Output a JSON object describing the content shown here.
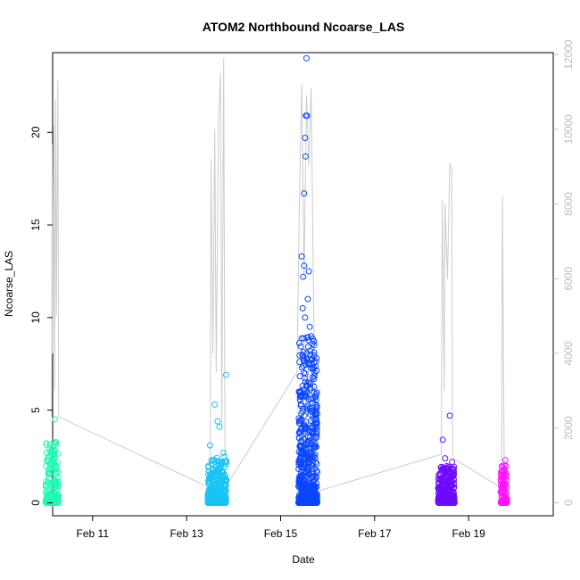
{
  "chart_data": {
    "type": "scatter",
    "title": "ATOM2 Northbound Ncoarse_LAS",
    "xlabel": "Date",
    "ylabel": "Ncoarse_LAS",
    "xlim": [
      10.15,
      20.8
    ],
    "ylim": [
      -0.7,
      24.3
    ],
    "y2lim": [
      -345,
      12050
    ],
    "x_ticks": [
      {
        "value": 11,
        "label": "Feb 11"
      },
      {
        "value": 13,
        "label": "Feb 13"
      },
      {
        "value": 15,
        "label": "Feb 15"
      },
      {
        "value": 17,
        "label": "Feb 17"
      },
      {
        "value": 19,
        "label": "Feb 19"
      }
    ],
    "y_ticks": [
      0,
      5,
      10,
      15,
      20
    ],
    "y2_ticks": [
      0,
      2000,
      4000,
      6000,
      8000,
      10000,
      12000
    ],
    "grid": false,
    "colors": {
      "line": "#cccccc",
      "right_axis": "#bdbdbd",
      "axis": "#000000"
    },
    "secondary_line": [
      {
        "x": 10.13,
        "y": 2300
      },
      {
        "x": 10.14,
        "y": 9600
      },
      {
        "x": 10.15,
        "y": 4000
      },
      {
        "x": 10.17,
        "y": 10100
      },
      {
        "x": 10.19,
        "y": 3000
      },
      {
        "x": 10.21,
        "y": 10800
      },
      {
        "x": 10.23,
        "y": 5000
      },
      {
        "x": 10.26,
        "y": 11300
      },
      {
        "x": 10.28,
        "y": 2300
      },
      {
        "x": 13.5,
        "y": 400
      },
      {
        "x": 13.52,
        "y": 9200
      },
      {
        "x": 13.56,
        "y": 4000
      },
      {
        "x": 13.6,
        "y": 10000
      },
      {
        "x": 13.63,
        "y": 3500
      },
      {
        "x": 13.68,
        "y": 10200
      },
      {
        "x": 13.72,
        "y": 11500
      },
      {
        "x": 13.75,
        "y": 2000
      },
      {
        "x": 13.79,
        "y": 11900
      },
      {
        "x": 13.82,
        "y": 400
      },
      {
        "x": 15.35,
        "y": 3500
      },
      {
        "x": 15.4,
        "y": 8000
      },
      {
        "x": 15.45,
        "y": 11200
      },
      {
        "x": 15.5,
        "y": 6000
      },
      {
        "x": 15.55,
        "y": 10900
      },
      {
        "x": 15.6,
        "y": 9000
      },
      {
        "x": 15.65,
        "y": 11100
      },
      {
        "x": 15.7,
        "y": 5500
      },
      {
        "x": 15.75,
        "y": 300
      },
      {
        "x": 18.42,
        "y": 1300
      },
      {
        "x": 18.44,
        "y": 8100
      },
      {
        "x": 18.48,
        "y": 3000
      },
      {
        "x": 18.5,
        "y": 8000
      },
      {
        "x": 18.55,
        "y": 6000
      },
      {
        "x": 18.6,
        "y": 9100
      },
      {
        "x": 18.64,
        "y": 8900
      },
      {
        "x": 18.66,
        "y": 1200
      },
      {
        "x": 19.7,
        "y": 400
      },
      {
        "x": 19.72,
        "y": 8200
      },
      {
        "x": 19.76,
        "y": 500
      }
    ],
    "series": [
      {
        "color": "#1efab4",
        "x": [
          10.0,
          10.28
        ],
        "y_range": [
          0,
          3.3
        ],
        "n": 200,
        "outliers": [
          [
            10.2,
            4.5
          ],
          [
            10.22,
            3.2
          ],
          [
            10.18,
            2.8
          ]
        ]
      },
      {
        "color": "#19c3f5",
        "x": [
          13.45,
          13.85
        ],
        "y_range": [
          0,
          2.5
        ],
        "n": 350,
        "outliers": [
          [
            13.6,
            5.3
          ],
          [
            13.66,
            4.4
          ],
          [
            13.7,
            4.1
          ],
          [
            13.84,
            6.9
          ],
          [
            13.5,
            3.1
          ],
          [
            13.78,
            2.7
          ]
        ]
      },
      {
        "color": "#0a46ff",
        "x": [
          15.38,
          15.78
        ],
        "y_range": [
          0,
          9
        ],
        "n": 600,
        "outliers": [
          [
            15.55,
            24.0
          ],
          [
            15.54,
            20.9
          ],
          [
            15.56,
            20.9
          ],
          [
            15.52,
            19.7
          ],
          [
            15.53,
            18.7
          ],
          [
            15.5,
            16.7
          ],
          [
            15.45,
            13.3
          ],
          [
            15.6,
            12.5
          ],
          [
            15.48,
            12.2
          ],
          [
            15.5,
            12.8
          ],
          [
            15.58,
            11.0
          ],
          [
            15.47,
            10.5
          ],
          [
            15.52,
            10.0
          ],
          [
            15.62,
            9.5
          ]
        ]
      },
      {
        "color": "#6e0aff",
        "x": [
          18.35,
          18.7
        ],
        "y_range": [
          0,
          2.0
        ],
        "n": 300,
        "outliers": [
          [
            18.6,
            4.7
          ],
          [
            18.45,
            3.4
          ],
          [
            18.5,
            2.4
          ],
          [
            18.65,
            2.2
          ]
        ]
      },
      {
        "color": "#ff14ff",
        "x": [
          19.68,
          19.82
        ],
        "y_range": [
          0,
          2.0
        ],
        "n": 120,
        "outliers": [
          [
            19.78,
            2.3
          ],
          [
            19.76,
            2.0
          ]
        ]
      }
    ]
  }
}
